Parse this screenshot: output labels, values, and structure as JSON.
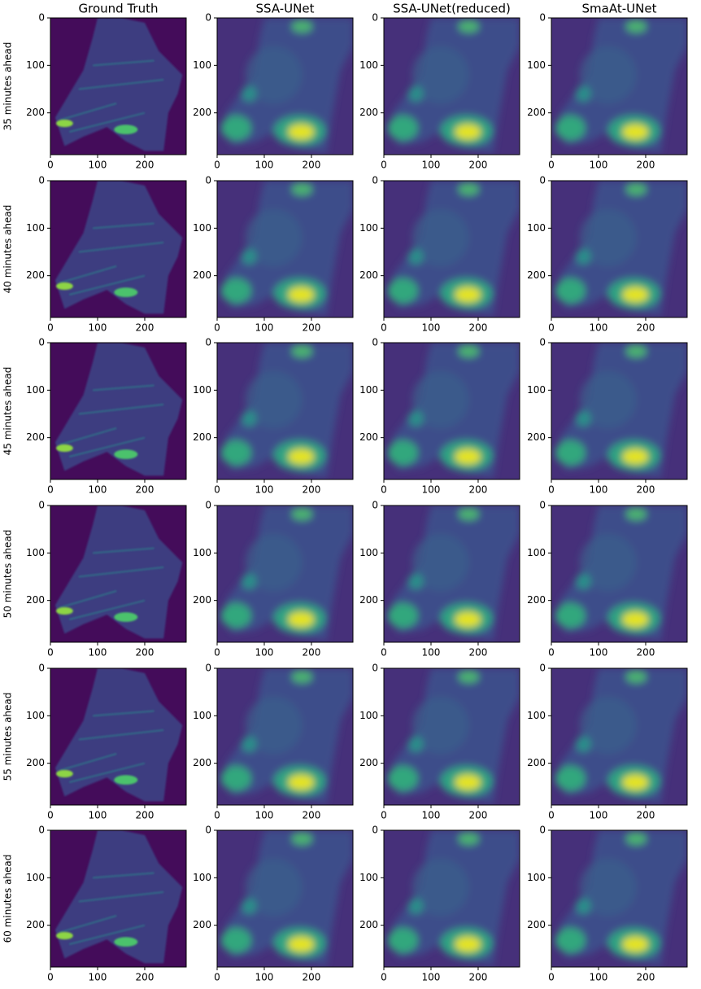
{
  "columns": [
    "Ground Truth",
    "SSA-UNet",
    "SSA-UNet(reduced)",
    "SmaAt-UNet"
  ],
  "rows": [
    "35 minutes ahead",
    "40 minutes ahead",
    "45 minutes ahead",
    "50 minutes ahead",
    "55 minutes ahead",
    "60 minutes ahead"
  ],
  "xlim": [
    0,
    288
  ],
  "ylim": [
    0,
    288
  ],
  "xticks": [
    0,
    100,
    200
  ],
  "yticks": [
    0,
    100,
    200
  ]
}
